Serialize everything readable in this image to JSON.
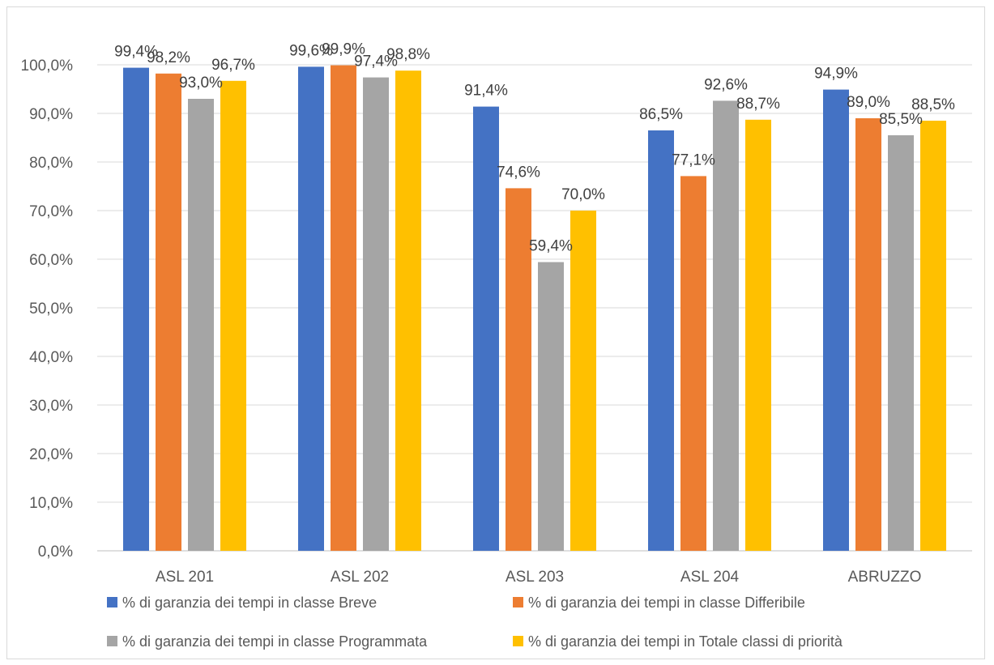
{
  "chart_data": {
    "type": "bar",
    "categories": [
      "ASL 201",
      "ASL 202",
      "ASL 203",
      "ASL 204",
      "ABRUZZO"
    ],
    "series": [
      {
        "name": "% di garanzia dei tempi in classe Breve",
        "color": "#4472C4",
        "values": [
          99.4,
          99.6,
          91.4,
          86.5,
          94.9
        ],
        "labels": [
          "99,4%",
          "99,6%",
          "91,4%",
          "86,5%",
          "94,9%"
        ]
      },
      {
        "name": "% di garanzia dei tempi in classe Differibile",
        "color": "#ED7D31",
        "values": [
          98.2,
          99.9,
          74.6,
          77.1,
          89.0
        ],
        "labels": [
          "98,2%",
          "99,9%",
          "74,6%",
          "77,1%",
          "89,0%"
        ]
      },
      {
        "name": "% di garanzia dei tempi in classe Programmata",
        "color": "#A5A5A5",
        "values": [
          93.0,
          97.4,
          59.4,
          92.6,
          85.5
        ],
        "labels": [
          "93,0%",
          "97,4%",
          "59,4%",
          "92,6%",
          "85,5%"
        ]
      },
      {
        "name": "% di garanzia dei tempi in Totale classi di priorità",
        "color": "#FFC000",
        "values": [
          96.7,
          98.8,
          70.0,
          88.7,
          88.5
        ],
        "labels": [
          "96,7%",
          "98,8%",
          "70,0%",
          "88,7%",
          "88,5%"
        ]
      }
    ],
    "yticks": [
      "0,0%",
      "10,0%",
      "20,0%",
      "30,0%",
      "40,0%",
      "50,0%",
      "60,0%",
      "70,0%",
      "80,0%",
      "90,0%",
      "100,0%"
    ],
    "ylim": [
      0,
      100
    ],
    "grid": true,
    "legend_position": "bottom"
  }
}
